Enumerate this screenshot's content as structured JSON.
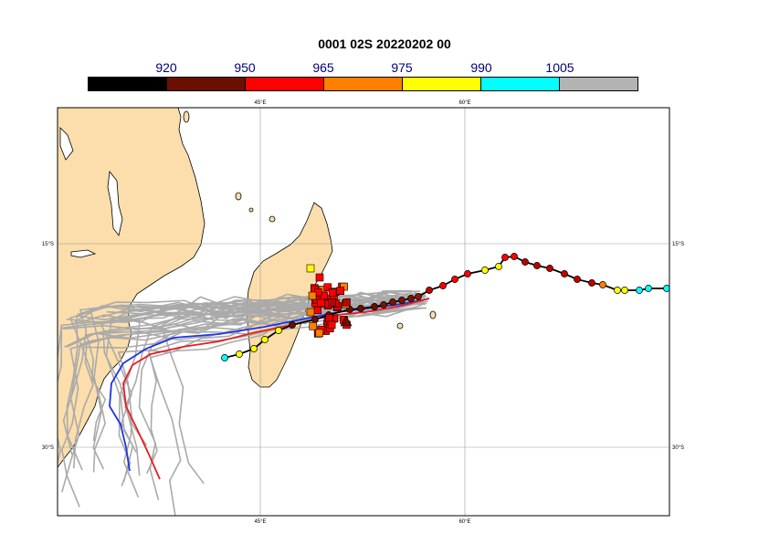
{
  "title": "0001 02S 20220202 00",
  "colorbar": {
    "labels": [
      "920",
      "950",
      "965",
      "975",
      "990",
      "1005"
    ],
    "colors": [
      "#000000",
      "#6b0f00",
      "#ff0000",
      "#ff7f00",
      "#ffff00",
      "#00ffff",
      "#b3b3b3"
    ]
  },
  "map": {
    "lon_labels": [
      "45°E",
      "60°E"
    ],
    "lat_labels": [
      "15°S",
      "30°S"
    ],
    "land_color": "#fbdeab",
    "ensemble_color": "#aaaaaa",
    "track_colors": {
      "blue": "#1e32e6",
      "red": "#e61e1e",
      "observed": "#000000"
    }
  }
}
